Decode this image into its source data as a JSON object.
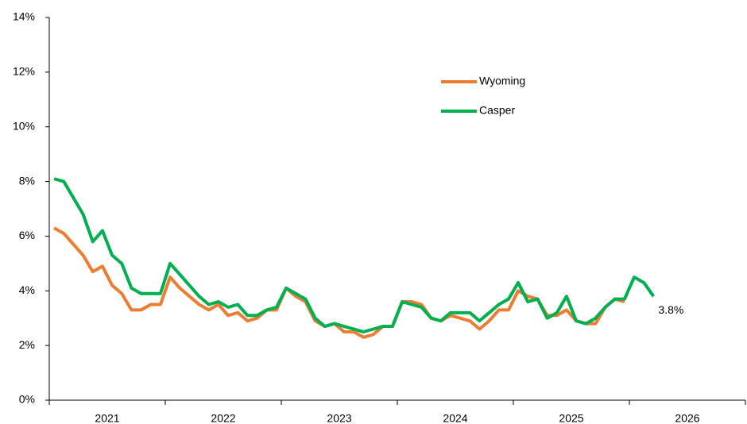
{
  "chart_data": {
    "type": "line",
    "categories": [
      null,
      null,
      null,
      null,
      null,
      null,
      null,
      null,
      null,
      null,
      null,
      null,
      null,
      null,
      null,
      null,
      null,
      null,
      null,
      null,
      null,
      null,
      null,
      null,
      null,
      null,
      null,
      null,
      null,
      null,
      null,
      null,
      null,
      null,
      null,
      null,
      null,
      null,
      null,
      null,
      null,
      null,
      null,
      null,
      null,
      null,
      null,
      null,
      null,
      null,
      null,
      null,
      null,
      null,
      null,
      null,
      null,
      null,
      null,
      null,
      null,
      null,
      null
    ],
    "year_labels": [
      2021,
      2022,
      2023,
      2024,
      2025,
      2026
    ],
    "series": [
      {
        "name": "Wyoming",
        "color": "#ED7D31",
        "values": [
          6.3,
          6.1,
          5.7,
          5.3,
          4.7,
          4.9,
          4.2,
          3.9,
          3.3,
          3.3,
          3.5,
          3.5,
          4.5,
          4.1,
          3.8,
          3.5,
          3.3,
          3.5,
          3.1,
          3.2,
          2.9,
          3.0,
          3.3,
          3.3,
          4.1,
          3.8,
          3.6,
          2.9,
          2.7,
          2.8,
          2.5,
          2.5,
          2.3,
          2.4,
          2.7,
          2.7,
          3.6,
          3.6,
          3.5,
          3.0,
          2.9,
          3.1,
          3.0,
          2.9,
          2.6,
          2.9,
          3.3,
          3.3,
          4.0,
          3.8,
          3.7,
          3.1,
          3.1,
          3.3,
          2.9,
          2.8,
          2.8,
          3.4,
          3.7,
          3.6,
          null,
          null,
          null
        ]
      },
      {
        "name": "Casper",
        "color": "#00B050",
        "end_label": "3.8%",
        "values": [
          8.1,
          8.0,
          7.4,
          6.8,
          5.8,
          6.2,
          5.3,
          5.0,
          4.1,
          3.9,
          3.9,
          3.9,
          5.0,
          4.6,
          4.2,
          3.8,
          3.5,
          3.6,
          3.4,
          3.5,
          3.1,
          3.1,
          3.3,
          3.4,
          4.1,
          3.9,
          3.7,
          3.0,
          2.7,
          2.8,
          2.7,
          2.6,
          2.5,
          2.6,
          2.7,
          2.7,
          3.6,
          3.5,
          3.4,
          3.0,
          2.9,
          3.2,
          3.2,
          3.2,
          2.9,
          3.2,
          3.5,
          3.7,
          4.3,
          3.6,
          3.7,
          3.0,
          3.2,
          3.8,
          2.9,
          2.8,
          3.0,
          3.4,
          3.7,
          3.7,
          4.5,
          4.3,
          3.8
        ]
      }
    ],
    "ylim": [
      0,
      14
    ],
    "yticks": [
      {
        "value": 0,
        "label": "0%"
      },
      {
        "value": 2,
        "label": "2%"
      },
      {
        "value": 4,
        "label": "4%"
      },
      {
        "value": 6,
        "label": "6%"
      },
      {
        "value": 8,
        "label": "8%"
      },
      {
        "value": 10,
        "label": "10%"
      },
      {
        "value": 12,
        "label": "12%"
      },
      {
        "value": 14,
        "label": "14%"
      }
    ],
    "grid": false,
    "legend": "upper-center"
  }
}
